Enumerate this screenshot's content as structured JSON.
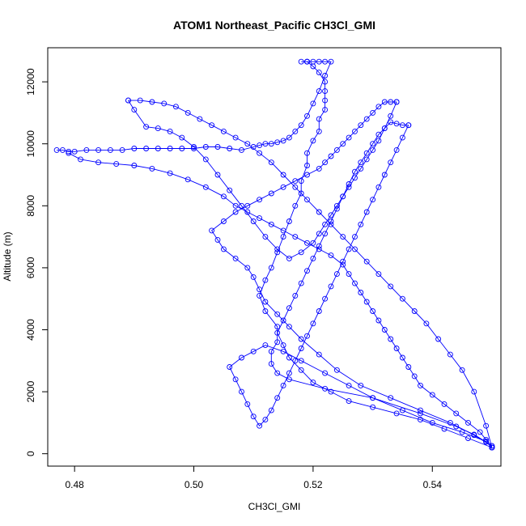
{
  "chart_data": {
    "type": "scatter",
    "title": "ATOM1 Northeast_Pacific CH3Cl_GMI",
    "xlabel": "CH3Cl_GMI",
    "ylabel": "Altitude (m)",
    "xlim": [
      0.4755,
      0.5515
    ],
    "ylim": [
      -400,
      13100
    ],
    "xticks": [
      0.48,
      0.5,
      0.52,
      0.54
    ],
    "xtick_labels": [
      "0.48",
      "0.50",
      "0.52",
      "0.54"
    ],
    "yticks": [
      0,
      2000,
      4000,
      6000,
      8000,
      10000,
      12000
    ],
    "ytick_labels": [
      "0",
      "2000",
      "4000",
      "6000",
      "8000",
      "10000",
      "12000"
    ],
    "grid": false,
    "legend": "none",
    "color": "#0000ff",
    "marker": "open-circle",
    "connected": true,
    "series": [
      {
        "x": [
          0.55,
          0.549,
          0.547,
          0.544,
          0.538,
          0.53,
          0.522,
          0.516,
          0.514,
          0.513,
          0.513,
          0.514,
          0.514,
          0.512,
          0.511,
          0.512,
          0.513,
          0.514,
          0.515,
          0.516,
          0.517,
          0.518,
          0.518,
          0.519,
          0.519,
          0.52,
          0.521,
          0.521,
          0.522,
          0.522,
          0.522,
          0.522,
          0.521,
          0.52,
          0.519,
          0.518,
          0.519
        ],
        "y": [
          200,
          380,
          620,
          880,
          1300,
          1800,
          2100,
          2400,
          2600,
          2900,
          3300,
          3600,
          4100,
          4600,
          5100,
          5600,
          6000,
          6500,
          7000,
          7500,
          8000,
          8400,
          8800,
          9300,
          9700,
          10100,
          10400,
          10800,
          11100,
          11400,
          11700,
          12000,
          12300,
          12500,
          12650,
          12650,
          12650
        ]
      },
      {
        "x": [
          0.519,
          0.52,
          0.521,
          0.522,
          0.523,
          0.522,
          0.521,
          0.52,
          0.519,
          0.518,
          0.517,
          0.516,
          0.515,
          0.514,
          0.513,
          0.512,
          0.511,
          0.51,
          0.508,
          0.506,
          0.504,
          0.502,
          0.5,
          0.498,
          0.496,
          0.494,
          0.492,
          0.49,
          0.488,
          0.486,
          0.484,
          0.482,
          0.48,
          0.479,
          0.478,
          0.477
        ],
        "y": [
          12650,
          12650,
          12650,
          12650,
          12650,
          12200,
          11700,
          11300,
          10900,
          10600,
          10400,
          10200,
          10100,
          10050,
          10000,
          10000,
          9950,
          9900,
          9800,
          9850,
          9900,
          9900,
          9850,
          9850,
          9850,
          9850,
          9850,
          9850,
          9800,
          9800,
          9800,
          9800,
          9750,
          9750,
          9800,
          9800
        ]
      },
      {
        "x": [
          0.479,
          0.481,
          0.484,
          0.487,
          0.49,
          0.493,
          0.496,
          0.499,
          0.502,
          0.505,
          0.507,
          0.509,
          0.511,
          0.513,
          0.515,
          0.517,
          0.519,
          0.521,
          0.523,
          0.525,
          0.526,
          0.527,
          0.528,
          0.529,
          0.53,
          0.531,
          0.532,
          0.533,
          0.534,
          0.535,
          0.536,
          0.537,
          0.538,
          0.54,
          0.542,
          0.544,
          0.546,
          0.548,
          0.549,
          0.55
        ],
        "y": [
          9700,
          9500,
          9400,
          9350,
          9300,
          9200,
          9050,
          8850,
          8600,
          8300,
          8000,
          7800,
          7600,
          7400,
          7200,
          7000,
          6800,
          6600,
          6400,
          6100,
          5800,
          5500,
          5200,
          4900,
          4600,
          4300,
          4000,
          3700,
          3400,
          3100,
          2800,
          2500,
          2200,
          1900,
          1600,
          1300,
          1000,
          700,
          450,
          250
        ]
      },
      {
        "x": [
          0.55,
          0.547,
          0.543,
          0.538,
          0.533,
          0.528,
          0.524,
          0.521,
          0.518,
          0.516,
          0.514,
          0.512,
          0.511,
          0.51,
          0.509,
          0.507,
          0.505,
          0.504,
          0.503,
          0.505,
          0.507,
          0.509,
          0.511,
          0.513,
          0.515,
          0.517,
          0.519,
          0.521,
          0.522,
          0.523,
          0.524,
          0.525,
          0.526,
          0.527,
          0.528,
          0.529,
          0.53,
          0.531,
          0.532,
          0.533,
          0.534
        ],
        "y": [
          250,
          600,
          1000,
          1400,
          1800,
          2200,
          2700,
          3200,
          3700,
          4100,
          4500,
          4900,
          5300,
          5700,
          6000,
          6300,
          6600,
          6900,
          7200,
          7500,
          7800,
          8000,
          8200,
          8400,
          8600,
          8800,
          9000,
          9200,
          9400,
          9600,
          9800,
          10000,
          10200,
          10400,
          10600,
          10800,
          11000,
          11200,
          11350,
          11350,
          11350
        ]
      },
      {
        "x": [
          0.534,
          0.533,
          0.532,
          0.531,
          0.53,
          0.529,
          0.528,
          0.527,
          0.526,
          0.525,
          0.524,
          0.523,
          0.522,
          0.521,
          0.52,
          0.518,
          0.516,
          0.514,
          0.512,
          0.51,
          0.508,
          0.506,
          0.504,
          0.502,
          0.5,
          0.498,
          0.496,
          0.494,
          0.492,
          0.49,
          0.489
        ],
        "y": [
          11350,
          10900,
          10500,
          10100,
          9800,
          9500,
          9200,
          8900,
          8600,
          8300,
          8000,
          7700,
          7400,
          7100,
          6800,
          6500,
          6300,
          6600,
          7000,
          7500,
          8000,
          8500,
          9000,
          9500,
          9900,
          10200,
          10400,
          10500,
          10550,
          11100,
          11400
        ]
      },
      {
        "x": [
          0.489,
          0.491,
          0.493,
          0.495,
          0.497,
          0.499,
          0.501,
          0.503,
          0.505,
          0.507,
          0.509,
          0.511,
          0.513,
          0.515,
          0.517,
          0.519,
          0.521,
          0.523,
          0.525,
          0.527,
          0.529,
          0.531,
          0.533,
          0.535,
          0.537,
          0.539,
          0.541,
          0.543,
          0.545,
          0.547,
          0.549,
          0.55
        ],
        "y": [
          11400,
          11400,
          11350,
          11300,
          11200,
          11000,
          10800,
          10600,
          10400,
          10200,
          10000,
          9700,
          9400,
          9000,
          8600,
          8200,
          7800,
          7400,
          7000,
          6600,
          6200,
          5800,
          5400,
          5000,
          4600,
          4200,
          3700,
          3200,
          2700,
          2000,
          900,
          200
        ]
      },
      {
        "x": [
          0.55,
          0.546,
          0.542,
          0.538,
          0.534,
          0.53,
          0.526,
          0.523,
          0.52,
          0.518,
          0.516,
          0.515,
          0.514,
          0.515,
          0.516,
          0.517,
          0.518,
          0.519,
          0.52,
          0.521,
          0.522,
          0.523,
          0.524,
          0.525,
          0.526,
          0.527,
          0.528,
          0.529,
          0.53,
          0.531,
          0.532,
          0.533,
          0.534,
          0.535,
          0.536
        ],
        "y": [
          200,
          500,
          800,
          1100,
          1300,
          1500,
          1700,
          2000,
          2300,
          2700,
          3100,
          3500,
          3900,
          4300,
          4700,
          5100,
          5500,
          5900,
          6300,
          6700,
          7100,
          7500,
          7900,
          8300,
          8700,
          9100,
          9400,
          9700,
          10000,
          10300,
          10500,
          10700,
          10650,
          10600,
          10600
        ]
      },
      {
        "x": [
          0.536,
          0.535,
          0.534,
          0.533,
          0.532,
          0.531,
          0.53,
          0.529,
          0.528,
          0.527,
          0.526,
          0.525,
          0.524,
          0.523,
          0.522,
          0.521,
          0.52,
          0.519,
          0.518,
          0.517,
          0.516,
          0.515,
          0.514,
          0.513,
          0.512,
          0.511,
          0.51,
          0.509,
          0.508,
          0.507,
          0.506,
          0.508,
          0.51,
          0.512,
          0.515,
          0.518,
          0.522,
          0.526,
          0.53,
          0.535,
          0.54,
          0.545,
          0.549,
          0.55
        ],
        "y": [
          10600,
          10200,
          9800,
          9400,
          9000,
          8600,
          8200,
          7800,
          7400,
          7000,
          6600,
          6200,
          5800,
          5400,
          5000,
          4600,
          4200,
          3800,
          3400,
          3000,
          2600,
          2200,
          1800,
          1400,
          1100,
          900,
          1200,
          1600,
          2000,
          2400,
          2800,
          3100,
          3300,
          3500,
          3300,
          3000,
          2600,
          2200,
          1800,
          1400,
          1000,
          700,
          400,
          200
        ]
      }
    ]
  }
}
